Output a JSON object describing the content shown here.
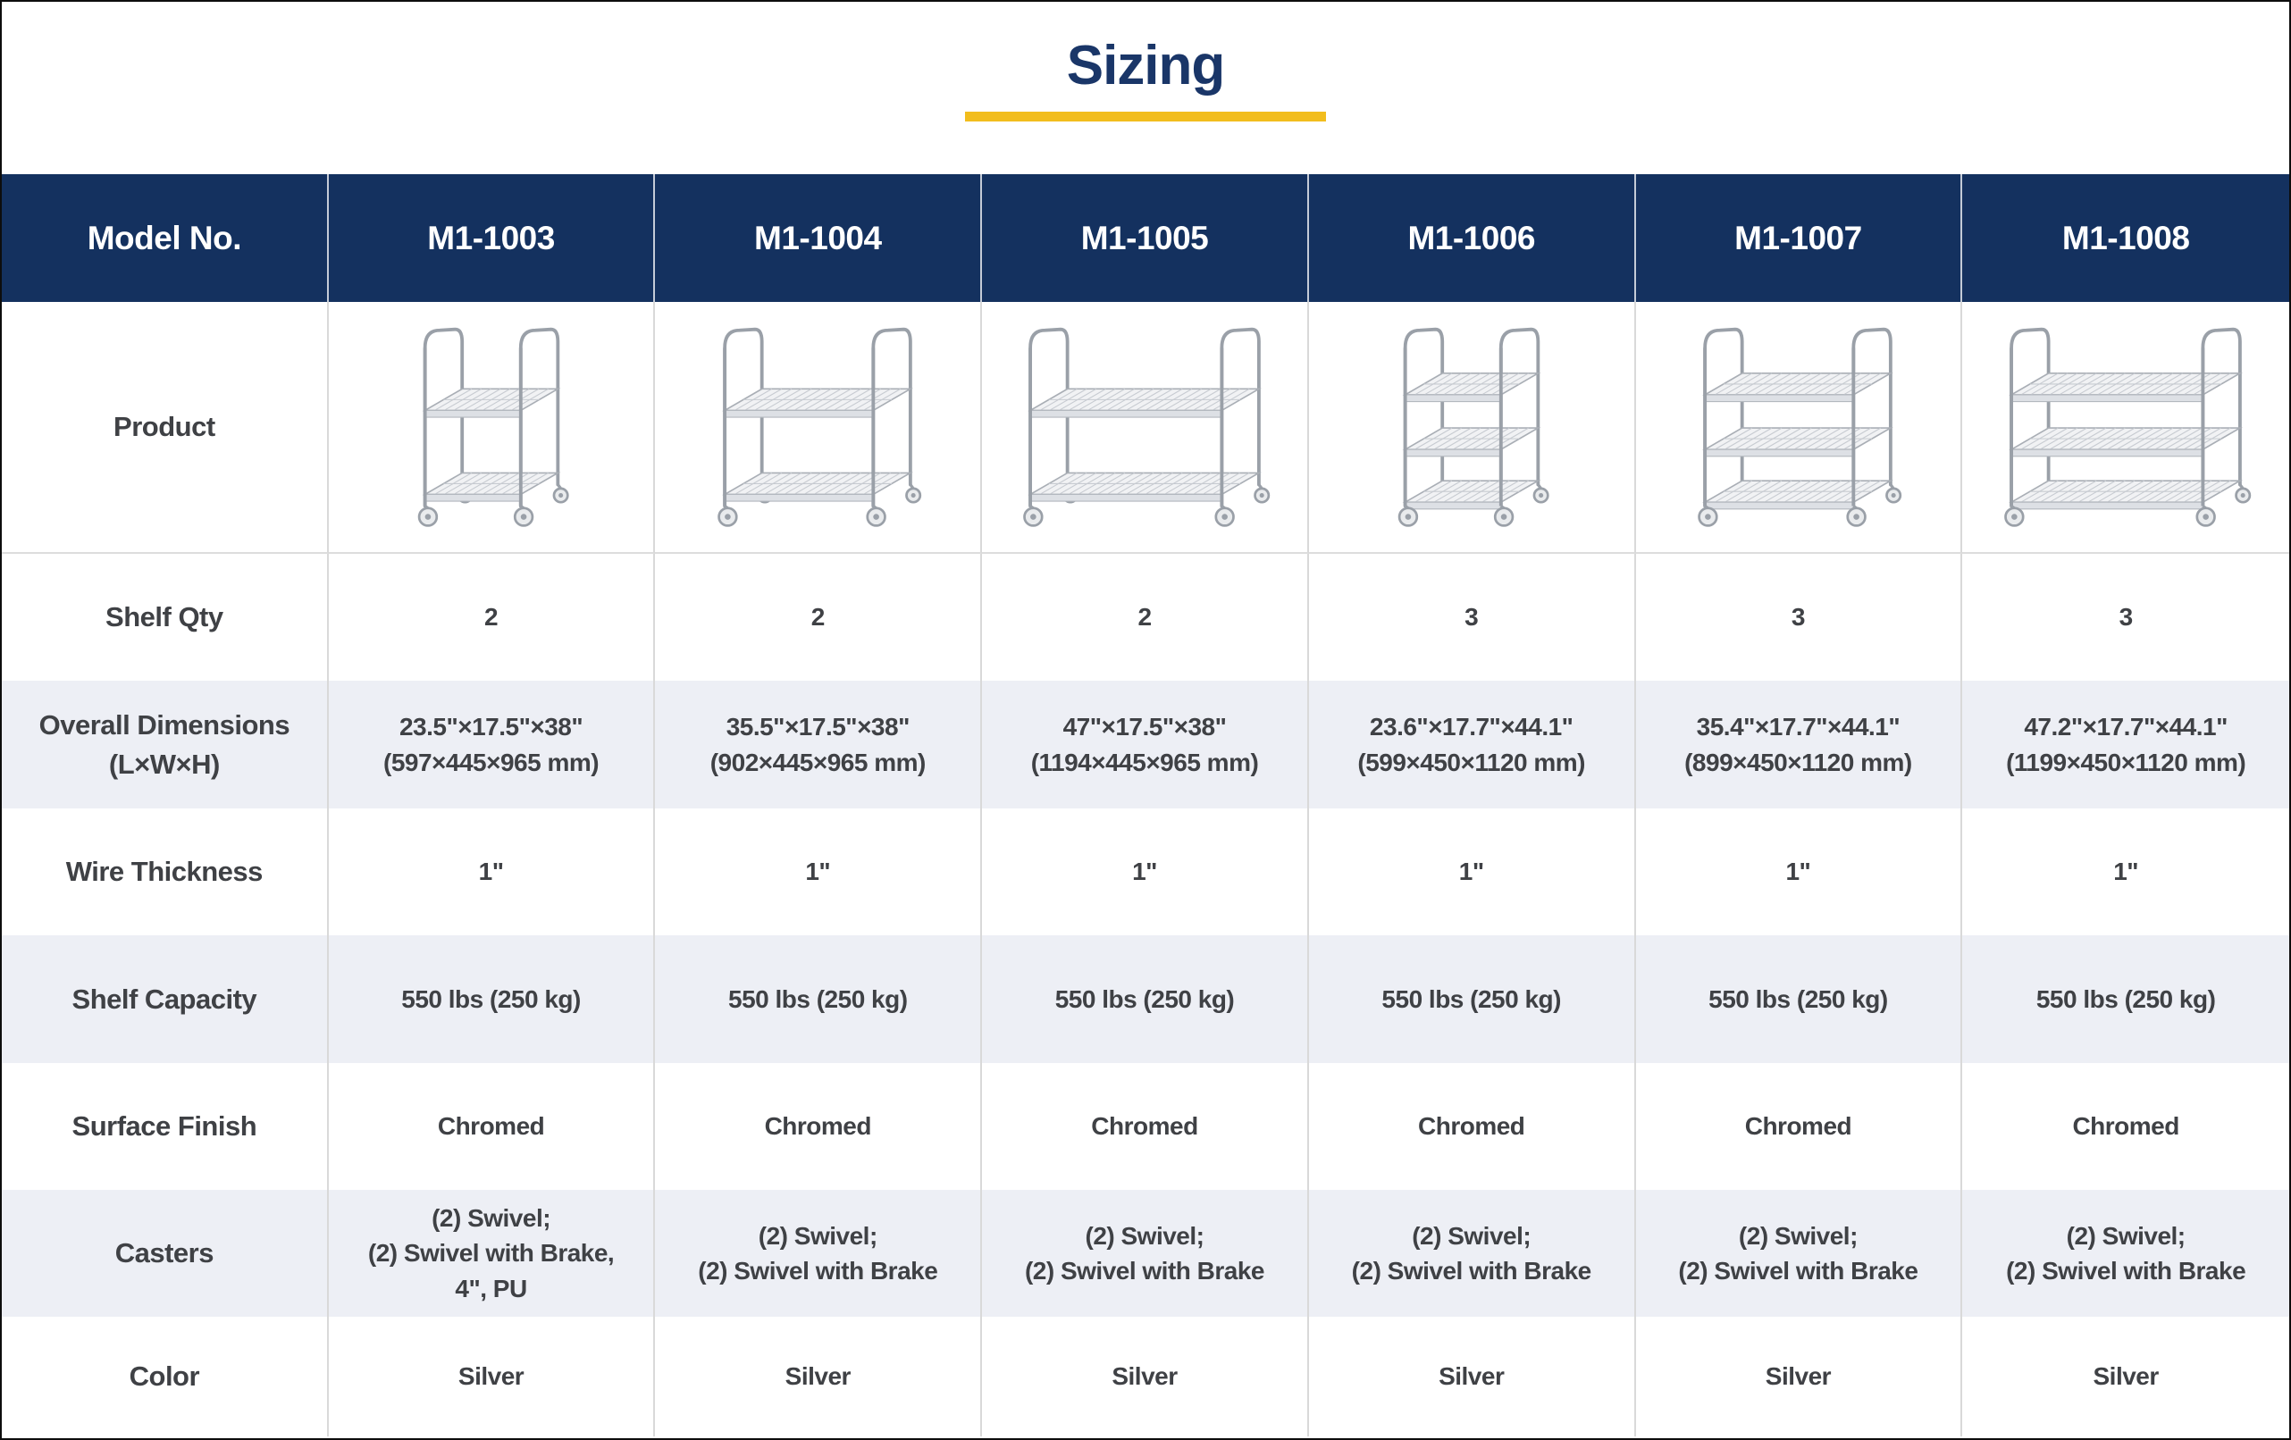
{
  "title": {
    "text": "Sizing"
  },
  "colors": {
    "navy_header": "#14315f",
    "title_navy": "#1a3668",
    "gold_underline": "#f2bd1d",
    "row_shade": "#edeff5",
    "text_dark": "#3f4145",
    "chrome_stroke": "#9aa0a8"
  },
  "table": {
    "header": {
      "label": "Model No.",
      "models": [
        "M1-1003",
        "M1-1004",
        "M1-1005",
        "M1-1006",
        "M1-1007",
        "M1-1008"
      ]
    },
    "product_row_label": "Product",
    "products": [
      {
        "model": "M1-1003",
        "shelves": 2,
        "size": "narrow"
      },
      {
        "model": "M1-1004",
        "shelves": 2,
        "size": "medium"
      },
      {
        "model": "M1-1005",
        "shelves": 2,
        "size": "wide"
      },
      {
        "model": "M1-1006",
        "shelves": 3,
        "size": "narrow"
      },
      {
        "model": "M1-1007",
        "shelves": 3,
        "size": "medium"
      },
      {
        "model": "M1-1008",
        "shelves": 3,
        "size": "wide"
      }
    ],
    "rows": [
      {
        "slug": "shelf-qty",
        "label": "Shelf Qty",
        "shade": false,
        "values": [
          "2",
          "2",
          "2",
          "3",
          "3",
          "3"
        ]
      },
      {
        "slug": "overall-dimensions",
        "label": "Overall Dimensions\n(L×W×H)",
        "shade": true,
        "values": [
          "23.5\"×17.5\"×38\"\n(597×445×965 mm)",
          "35.5\"×17.5\"×38\"\n(902×445×965 mm)",
          "47\"×17.5\"×38\"\n(1194×445×965 mm)",
          "23.6\"×17.7\"×44.1\"\n(599×450×1120 mm)",
          "35.4\"×17.7\"×44.1\"\n(899×450×1120 mm)",
          "47.2\"×17.7\"×44.1\"\n(1199×450×1120 mm)"
        ]
      },
      {
        "slug": "wire-thickness",
        "label": "Wire Thickness",
        "shade": false,
        "values": [
          "1\"",
          "1\"",
          "1\"",
          "1\"",
          "1\"",
          "1\""
        ]
      },
      {
        "slug": "shelf-capacity",
        "label": "Shelf Capacity",
        "shade": true,
        "values": [
          "550 lbs (250 kg)",
          "550 lbs (250 kg)",
          "550 lbs (250 kg)",
          "550 lbs (250 kg)",
          "550 lbs (250 kg)",
          "550 lbs (250 kg)"
        ]
      },
      {
        "slug": "surface-finish",
        "label": "Surface Finish",
        "shade": false,
        "values": [
          "Chromed",
          "Chromed",
          "Chromed",
          "Chromed",
          "Chromed",
          "Chromed"
        ]
      },
      {
        "slug": "casters",
        "label": "Casters",
        "shade": true,
        "values": [
          "(2) Swivel;\n(2) Swivel with Brake,\n4\", PU",
          "(2) Swivel;\n(2) Swivel with Brake",
          "(2) Swivel;\n(2) Swivel with Brake",
          "(2) Swivel;\n(2) Swivel with Brake",
          "(2) Swivel;\n(2) Swivel with Brake",
          "(2) Swivel;\n(2) Swivel with Brake"
        ]
      },
      {
        "slug": "color",
        "label": "Color",
        "shade": false,
        "values": [
          "Silver",
          "Silver",
          "Silver",
          "Silver",
          "Silver",
          "Silver"
        ]
      }
    ]
  }
}
